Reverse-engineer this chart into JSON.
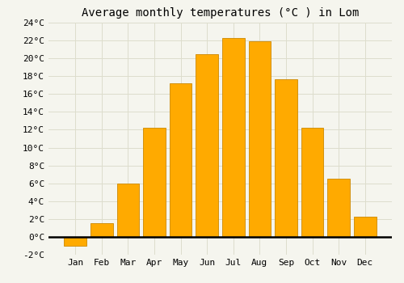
{
  "title": "Average monthly temperatures (°C ) in Lom",
  "months": [
    "Jan",
    "Feb",
    "Mar",
    "Apr",
    "May",
    "Jun",
    "Jul",
    "Aug",
    "Sep",
    "Oct",
    "Nov",
    "Dec"
  ],
  "values": [
    -1,
    1.5,
    6,
    12.2,
    17.2,
    20.5,
    22.3,
    21.9,
    17.7,
    12.2,
    6.5,
    2.3
  ],
  "bar_color": "#FFAA00",
  "bar_edge_color": "#CC8800",
  "background_color": "#f5f5ee",
  "plot_bg_color": "#f5f5ee",
  "grid_color": "#ddddcc",
  "ylim": [
    -2,
    24
  ],
  "yticks": [
    -2,
    0,
    2,
    4,
    6,
    8,
    10,
    12,
    14,
    16,
    18,
    20,
    22,
    24
  ],
  "ytick_labels": [
    "-2°C",
    "0°C",
    "2°C",
    "4°C",
    "6°C",
    "8°C",
    "10°C",
    "12°C",
    "14°C",
    "16°C",
    "18°C",
    "20°C",
    "22°C",
    "24°C"
  ],
  "title_fontsize": 10,
  "tick_fontsize": 8,
  "bar_width": 0.85
}
